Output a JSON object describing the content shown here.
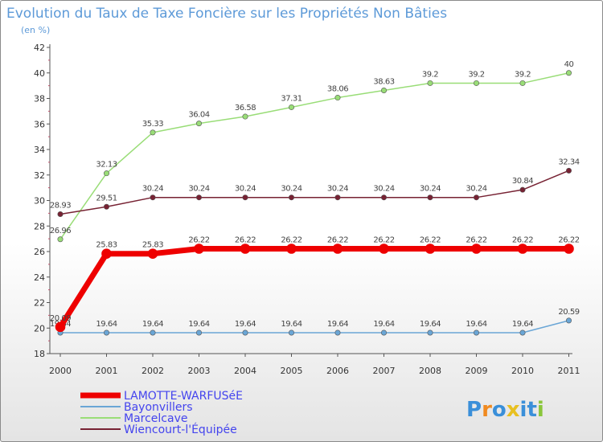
{
  "chart_data": {
    "type": "line",
    "title": "Evolution du Taux de Taxe Foncière sur les Propriétés Non Bâties",
    "subtitle": "(en %)",
    "xlabel": "",
    "ylabel": "",
    "categories": [
      "2000",
      "2001",
      "2002",
      "2003",
      "2004",
      "2005",
      "2006",
      "2007",
      "2008",
      "2009",
      "2010",
      "2011"
    ],
    "ylim": [
      18,
      42
    ],
    "yticks": [
      18,
      20,
      22,
      24,
      26,
      28,
      30,
      32,
      34,
      36,
      38,
      40,
      42
    ],
    "grid": false,
    "legend_position": "bottom-left",
    "series": [
      {
        "name": "LAMOTTE-WARFUSéE",
        "color": "#ee0000",
        "width": 7,
        "values": [
          20.09,
          25.83,
          25.83,
          26.22,
          26.22,
          26.22,
          26.22,
          26.22,
          26.22,
          26.22,
          26.22,
          26.22
        ],
        "labels": [
          "20.09",
          "25.83",
          "25.83",
          "26.22",
          "26.22",
          "26.22",
          "26.22",
          "26.22",
          "26.22",
          "26.22",
          "26.22",
          "26.22"
        ]
      },
      {
        "name": "Bayonvillers",
        "color": "#6aa6d6",
        "width": 1.5,
        "values": [
          19.64,
          19.64,
          19.64,
          19.64,
          19.64,
          19.64,
          19.64,
          19.64,
          19.64,
          19.64,
          19.64,
          20.59
        ],
        "labels": [
          "19.64",
          "19.64",
          "19.64",
          "19.64",
          "19.64",
          "19.64",
          "19.64",
          "19.64",
          "19.64",
          "19.64",
          "19.64",
          "20.59"
        ]
      },
      {
        "name": "Marcelcave",
        "color": "#99dd77",
        "width": 1.5,
        "values": [
          26.96,
          32.13,
          35.33,
          36.04,
          36.58,
          37.31,
          38.06,
          38.63,
          39.2,
          39.2,
          39.2,
          40
        ],
        "labels": [
          "26.96",
          "32.13",
          "35.33",
          "36.04",
          "36.58",
          "37.31",
          "38.06",
          "38.63",
          "39.2",
          "39.2",
          "39.2",
          "40"
        ]
      },
      {
        "name": "Wiencourt-l'Équipée",
        "color": "#772233",
        "width": 1.5,
        "values": [
          28.93,
          29.51,
          30.24,
          30.24,
          30.24,
          30.24,
          30.24,
          30.24,
          30.24,
          30.24,
          30.84,
          32.34
        ],
        "labels": [
          "28.93",
          "29.51",
          "30.24",
          "30.24",
          "30.24",
          "30.24",
          "30.24",
          "30.24",
          "30.24",
          "30.24",
          "30.84",
          "32.34"
        ]
      }
    ]
  },
  "logo": {
    "text": "Proxiti",
    "colors": [
      "#3a8fd9",
      "#f08a20",
      "#3a8fd9",
      "#e8c020",
      "#3a8fd9",
      "#3a8fd9",
      "#8ac63a"
    ]
  }
}
